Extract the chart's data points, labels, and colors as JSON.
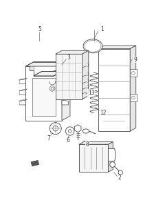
{
  "background_color": "#ffffff",
  "line_color": "#444444",
  "label_color": "#333333",
  "fig_width": 2.24,
  "fig_height": 3.0,
  "dpi": 100
}
